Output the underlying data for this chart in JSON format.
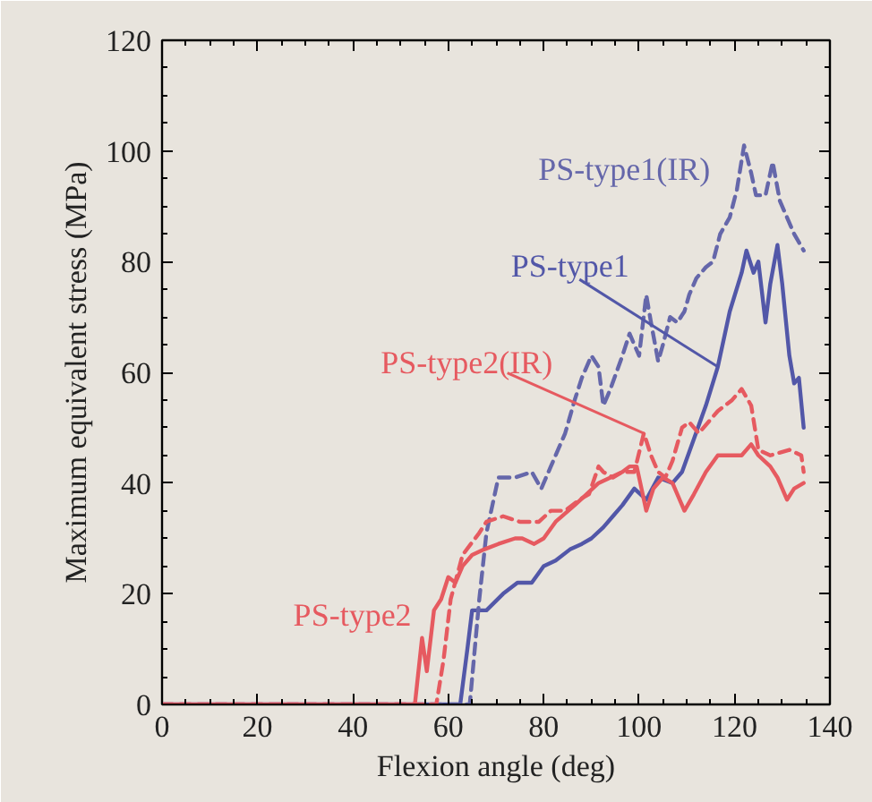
{
  "chart_data": {
    "type": "line",
    "xlabel": "Flexion angle (deg)",
    "ylabel": "Maximum equivalent stress (MPa)",
    "xlim": [
      0,
      140
    ],
    "ylim": [
      0,
      120
    ],
    "xticks": [
      0,
      20,
      40,
      60,
      80,
      100,
      120,
      140
    ],
    "yticks": [
      0,
      20,
      40,
      60,
      80,
      100,
      120
    ],
    "grid": false,
    "series": [
      {
        "name": "PS-type1",
        "color": "#5257a8",
        "line_style": "solid",
        "x": [
          0,
          62.5,
          64,
          65,
          68,
          71.5,
          74.5,
          77.5,
          80,
          82.5,
          85.5,
          88,
          90,
          92.5,
          94.5,
          96.5,
          99,
          101.5,
          104,
          107,
          109,
          111.5,
          114,
          116.5,
          119,
          121.5,
          122.5,
          124,
          125,
          126.5,
          127.5,
          129,
          130,
          131.5,
          132.5,
          133.5,
          134.5
        ],
        "values": [
          0,
          0,
          10,
          17,
          17,
          20,
          22,
          22,
          25,
          26,
          28,
          29,
          30,
          32,
          34,
          36,
          39,
          37,
          41,
          40,
          42,
          48,
          54,
          61,
          71,
          78,
          82,
          78,
          80,
          69,
          76,
          83,
          76,
          63,
          58,
          59,
          50
        ]
      },
      {
        "name": "PS-type1(IR)",
        "color": "#6567aa",
        "line_style": "dashed",
        "x": [
          0,
          64.5,
          66.5,
          68,
          70.5,
          74,
          77.5,
          79.5,
          81.5,
          84.5,
          86.5,
          88,
          90,
          91.5,
          92.5,
          94,
          96.5,
          98,
          100,
          101.5,
          102.5,
          104,
          105,
          106.5,
          108,
          109.5,
          110.5,
          112,
          114,
          115.5,
          117,
          119,
          120.5,
          122,
          123.5,
          124.5,
          126.5,
          128,
          129.5,
          131,
          132.5,
          134.5
        ],
        "values": [
          0,
          0,
          19,
          31,
          41,
          41,
          42,
          39,
          43,
          49,
          55,
          59,
          63,
          61,
          54,
          57,
          63,
          67,
          63,
          74,
          69,
          62,
          65,
          70,
          69,
          71,
          74,
          77,
          79,
          80,
          85,
          88,
          93,
          101,
          96,
          92,
          92,
          98,
          91,
          88,
          85,
          82
        ]
      },
      {
        "name": "PS-type2",
        "color": "#e65a60",
        "line_style": "solid",
        "x": [
          0,
          53,
          54.5,
          55.5,
          57,
          58.5,
          60,
          61.5,
          63,
          65,
          67.5,
          70.5,
          74,
          75.5,
          78,
          80,
          82.5,
          86.5,
          89,
          91.5,
          94,
          96.5,
          98,
          99.5,
          101.5,
          103,
          105,
          107,
          109.5,
          111.5,
          114,
          116.5,
          119,
          121.5,
          123.5,
          125,
          127.5,
          129,
          131,
          132.5,
          134.5
        ],
        "values": [
          0,
          0,
          12,
          6,
          17,
          19,
          23,
          22,
          25,
          27,
          28,
          29,
          30,
          30,
          29,
          30,
          33,
          36,
          38,
          40,
          41,
          42,
          43,
          43,
          35,
          39,
          41,
          40,
          35,
          38,
          42,
          45,
          45,
          45,
          47,
          45,
          43,
          41,
          37,
          39,
          40
        ]
      },
      {
        "name": "PS-type2(IR)",
        "color": "#e65a60",
        "line_style": "dashed",
        "x": [
          0,
          57.5,
          59,
          60.5,
          63,
          66.5,
          68,
          71.5,
          75,
          79,
          81.5,
          84.5,
          87.5,
          89.5,
          91.5,
          92.5,
          94.5,
          96.5,
          99,
          101,
          102.5,
          104,
          105.5,
          107,
          109,
          110.5,
          112.5,
          116.5,
          119.5,
          121.5,
          123.5,
          125,
          127.5,
          131.5,
          134,
          134.5
        ],
        "values": [
          0,
          0,
          8,
          19,
          27,
          31,
          33,
          34,
          33,
          33,
          35,
          35,
          37,
          38,
          43,
          42,
          41,
          42,
          42,
          49,
          45,
          42,
          41,
          44,
          50,
          51,
          49,
          53,
          55,
          57,
          54,
          46,
          45,
          46,
          45,
          42
        ]
      }
    ]
  }
}
